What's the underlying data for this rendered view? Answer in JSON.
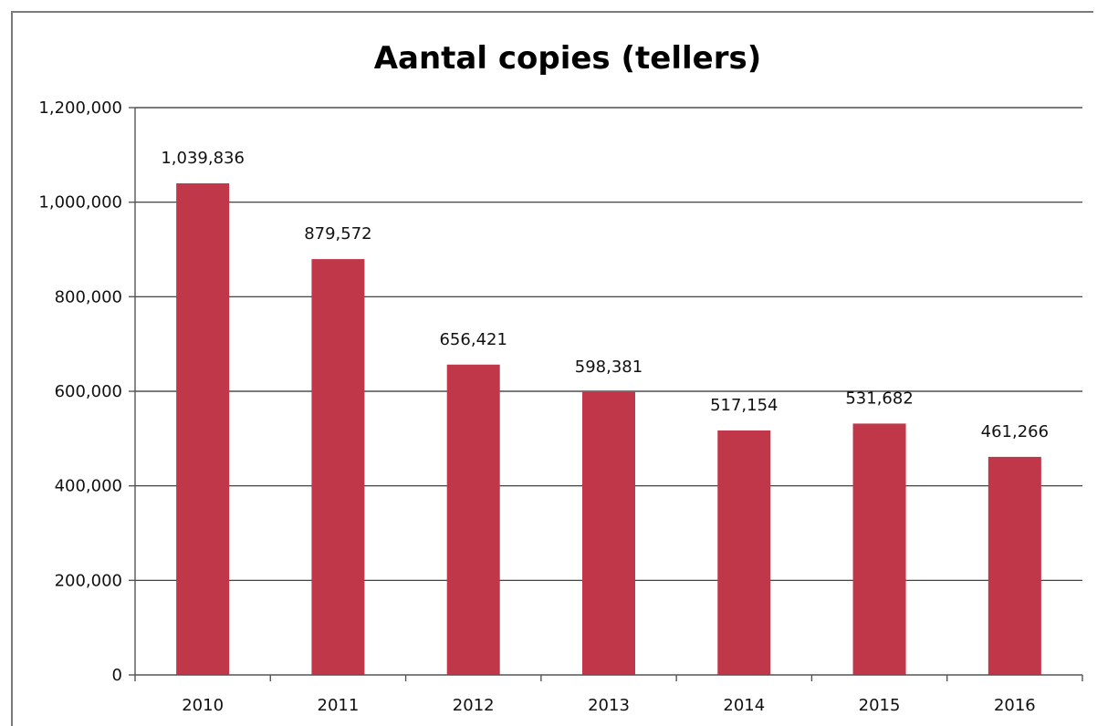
{
  "chart_data": {
    "type": "bar",
    "title": "Aantal copies (tellers)",
    "xlabel": "",
    "ylabel": "",
    "categories": [
      "2010",
      "2011",
      "2012",
      "2013",
      "2014",
      "2015",
      "2016"
    ],
    "values": [
      1039836,
      879572,
      656421,
      598381,
      517154,
      531682,
      461266
    ],
    "data_labels": [
      "1,039,836",
      "879,572",
      "656,421",
      "598,381",
      "517,154",
      "531,682",
      "461,266"
    ],
    "ylim": [
      0,
      1200000
    ],
    "yticks": [
      0,
      200000,
      400000,
      600000,
      800000,
      1000000,
      1200000
    ],
    "ytick_labels": [
      "0",
      "200,000",
      "400,000",
      "600,000",
      "800,000",
      "1,000,000",
      "1,200,000"
    ],
    "grid": true,
    "legend": "none",
    "bar_color": "#c0374a"
  }
}
